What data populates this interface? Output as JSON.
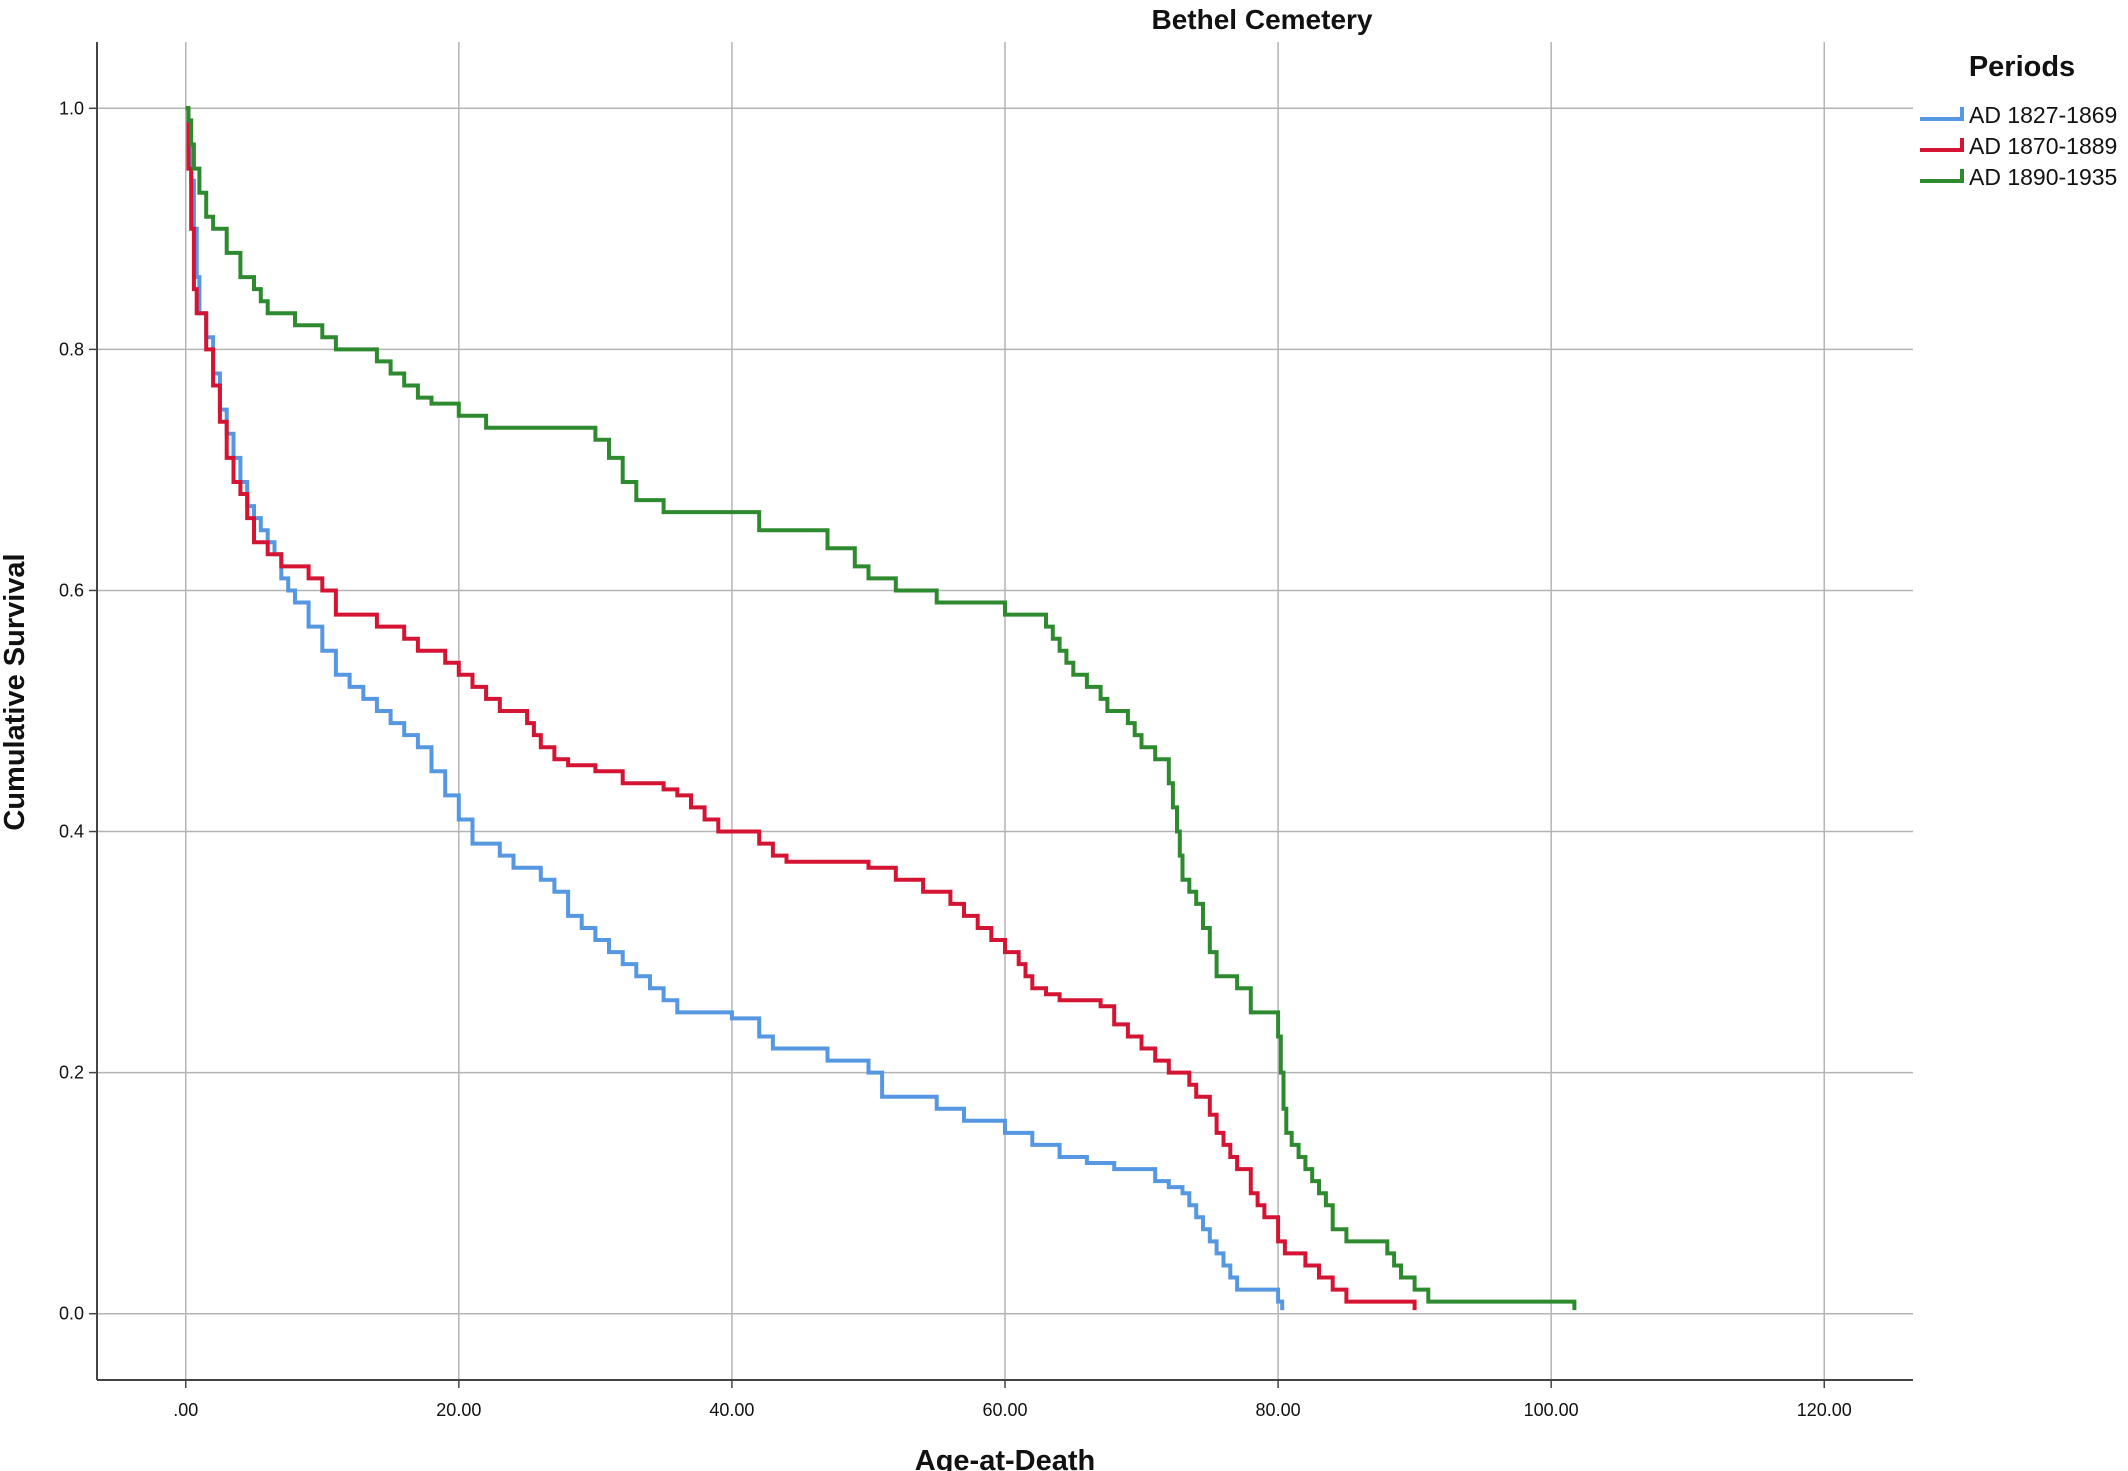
{
  "chart_data": {
    "type": "line",
    "title": "Bethel Cemetery",
    "xlabel": "Age-at-Death",
    "ylabel": "Cumulative Survival",
    "xlim": [
      -6.5,
      126.5
    ],
    "ylim": [
      -0.055,
      1.055
    ],
    "x_ticks": [
      0,
      20,
      40,
      60,
      80,
      100,
      120
    ],
    "x_tick_labels": [
      ".00",
      "20.00",
      "40.00",
      "60.00",
      "80.00",
      "100.00",
      "120.00"
    ],
    "y_ticks": [
      0,
      0.2,
      0.4,
      0.6,
      0.8,
      1.0
    ],
    "y_tick_labels": [
      "0.0",
      "0.2",
      "0.4",
      "0.6",
      "0.8",
      "1.0"
    ],
    "grid": true,
    "legend": {
      "title": "Periods",
      "position": "top-right"
    },
    "series": [
      {
        "name": "AD 1827-1869",
        "color": "#5597e1",
        "points": [
          [
            0,
            1.0
          ],
          [
            0.2,
            0.97
          ],
          [
            0.4,
            0.94
          ],
          [
            0.6,
            0.9
          ],
          [
            0.8,
            0.86
          ],
          [
            1.0,
            0.83
          ],
          [
            1.5,
            0.81
          ],
          [
            2.0,
            0.78
          ],
          [
            2.5,
            0.75
          ],
          [
            3.0,
            0.73
          ],
          [
            3.5,
            0.71
          ],
          [
            4.0,
            0.69
          ],
          [
            4.5,
            0.67
          ],
          [
            5.0,
            0.66
          ],
          [
            5.5,
            0.65
          ],
          [
            6.0,
            0.64
          ],
          [
            6.5,
            0.63
          ],
          [
            7.0,
            0.61
          ],
          [
            7.5,
            0.6
          ],
          [
            8.0,
            0.59
          ],
          [
            9.0,
            0.57
          ],
          [
            10.0,
            0.55
          ],
          [
            11.0,
            0.53
          ],
          [
            12.0,
            0.52
          ],
          [
            13.0,
            0.51
          ],
          [
            14.0,
            0.5
          ],
          [
            15.0,
            0.49
          ],
          [
            16.0,
            0.48
          ],
          [
            17.0,
            0.47
          ],
          [
            18.0,
            0.45
          ],
          [
            19.0,
            0.43
          ],
          [
            20.0,
            0.41
          ],
          [
            21.0,
            0.39
          ],
          [
            23.0,
            0.38
          ],
          [
            24.0,
            0.37
          ],
          [
            26.0,
            0.36
          ],
          [
            27.0,
            0.35
          ],
          [
            28.0,
            0.33
          ],
          [
            29.0,
            0.32
          ],
          [
            30.0,
            0.31
          ],
          [
            31.0,
            0.3
          ],
          [
            32.0,
            0.29
          ],
          [
            33.0,
            0.28
          ],
          [
            34.0,
            0.27
          ],
          [
            35.0,
            0.26
          ],
          [
            36.0,
            0.25
          ],
          [
            40.0,
            0.245
          ],
          [
            42.0,
            0.23
          ],
          [
            43.0,
            0.22
          ],
          [
            47.0,
            0.21
          ],
          [
            50.0,
            0.2
          ],
          [
            51.0,
            0.18
          ],
          [
            55.0,
            0.17
          ],
          [
            57.0,
            0.16
          ],
          [
            60.0,
            0.15
          ],
          [
            62.0,
            0.14
          ],
          [
            64.0,
            0.13
          ],
          [
            66.0,
            0.125
          ],
          [
            68.0,
            0.12
          ],
          [
            71.0,
            0.11
          ],
          [
            72.0,
            0.105
          ],
          [
            73.0,
            0.1
          ],
          [
            73.5,
            0.09
          ],
          [
            74.0,
            0.08
          ],
          [
            74.5,
            0.07
          ],
          [
            75.0,
            0.06
          ],
          [
            75.5,
            0.05
          ],
          [
            76.0,
            0.04
          ],
          [
            76.5,
            0.03
          ],
          [
            77.0,
            0.02
          ],
          [
            80.0,
            0.01
          ],
          [
            80.3,
            0.003
          ]
        ]
      },
      {
        "name": "AD 1870-1889",
        "color": "#d41432",
        "points": [
          [
            0,
            1.0
          ],
          [
            0.2,
            0.95
          ],
          [
            0.4,
            0.9
          ],
          [
            0.6,
            0.85
          ],
          [
            0.8,
            0.83
          ],
          [
            1.5,
            0.8
          ],
          [
            2.0,
            0.77
          ],
          [
            2.5,
            0.74
          ],
          [
            3.0,
            0.71
          ],
          [
            3.5,
            0.69
          ],
          [
            4.0,
            0.68
          ],
          [
            4.5,
            0.66
          ],
          [
            5.0,
            0.64
          ],
          [
            6.0,
            0.63
          ],
          [
            7.0,
            0.62
          ],
          [
            9.0,
            0.61
          ],
          [
            10.0,
            0.6
          ],
          [
            11.0,
            0.58
          ],
          [
            14.0,
            0.57
          ],
          [
            16.0,
            0.56
          ],
          [
            17.0,
            0.55
          ],
          [
            19.0,
            0.54
          ],
          [
            20.0,
            0.53
          ],
          [
            21.0,
            0.52
          ],
          [
            22.0,
            0.51
          ],
          [
            23.0,
            0.5
          ],
          [
            25.0,
            0.49
          ],
          [
            25.5,
            0.48
          ],
          [
            26.0,
            0.47
          ],
          [
            27.0,
            0.46
          ],
          [
            28.0,
            0.455
          ],
          [
            30.0,
            0.45
          ],
          [
            32.0,
            0.44
          ],
          [
            35.0,
            0.435
          ],
          [
            36.0,
            0.43
          ],
          [
            37.0,
            0.42
          ],
          [
            38.0,
            0.41
          ],
          [
            39.0,
            0.4
          ],
          [
            42.0,
            0.39
          ],
          [
            43.0,
            0.38
          ],
          [
            44.0,
            0.375
          ],
          [
            50.0,
            0.37
          ],
          [
            52.0,
            0.36
          ],
          [
            54.0,
            0.35
          ],
          [
            56.0,
            0.34
          ],
          [
            57.0,
            0.33
          ],
          [
            58.0,
            0.32
          ],
          [
            59.0,
            0.31
          ],
          [
            60.0,
            0.3
          ],
          [
            61.0,
            0.29
          ],
          [
            61.5,
            0.28
          ],
          [
            62.0,
            0.27
          ],
          [
            63.0,
            0.265
          ],
          [
            64.0,
            0.26
          ],
          [
            67.0,
            0.255
          ],
          [
            68.0,
            0.24
          ],
          [
            69.0,
            0.23
          ],
          [
            70.0,
            0.22
          ],
          [
            71.0,
            0.21
          ],
          [
            72.0,
            0.2
          ],
          [
            73.5,
            0.19
          ],
          [
            74.0,
            0.18
          ],
          [
            75.0,
            0.165
          ],
          [
            75.5,
            0.15
          ],
          [
            76.0,
            0.14
          ],
          [
            76.5,
            0.13
          ],
          [
            77.0,
            0.12
          ],
          [
            78.0,
            0.1
          ],
          [
            78.5,
            0.09
          ],
          [
            79.0,
            0.08
          ],
          [
            80.0,
            0.06
          ],
          [
            80.5,
            0.05
          ],
          [
            82.0,
            0.04
          ],
          [
            83.0,
            0.03
          ],
          [
            84.0,
            0.02
          ],
          [
            85.0,
            0.01
          ],
          [
            90.0,
            0.003
          ]
        ]
      },
      {
        "name": "AD 1890-1935",
        "color": "#2e8a2e",
        "points": [
          [
            0,
            1.0
          ],
          [
            0.2,
            0.99
          ],
          [
            0.4,
            0.97
          ],
          [
            0.6,
            0.95
          ],
          [
            1.0,
            0.93
          ],
          [
            1.5,
            0.91
          ],
          [
            2.0,
            0.9
          ],
          [
            3.0,
            0.88
          ],
          [
            4.0,
            0.86
          ],
          [
            5.0,
            0.85
          ],
          [
            5.5,
            0.84
          ],
          [
            6.0,
            0.83
          ],
          [
            8.0,
            0.82
          ],
          [
            10.0,
            0.81
          ],
          [
            11.0,
            0.8
          ],
          [
            14.0,
            0.79
          ],
          [
            15.0,
            0.78
          ],
          [
            16.0,
            0.77
          ],
          [
            17.0,
            0.76
          ],
          [
            18.0,
            0.755
          ],
          [
            20.0,
            0.745
          ],
          [
            22.0,
            0.735
          ],
          [
            30.0,
            0.725
          ],
          [
            31.0,
            0.71
          ],
          [
            32.0,
            0.69
          ],
          [
            33.0,
            0.675
          ],
          [
            35.0,
            0.665
          ],
          [
            42.0,
            0.65
          ],
          [
            47.0,
            0.635
          ],
          [
            49.0,
            0.62
          ],
          [
            50.0,
            0.61
          ],
          [
            52.0,
            0.6
          ],
          [
            55.0,
            0.59
          ],
          [
            60.0,
            0.58
          ],
          [
            63.0,
            0.57
          ],
          [
            63.5,
            0.56
          ],
          [
            64.0,
            0.55
          ],
          [
            64.5,
            0.54
          ],
          [
            65.0,
            0.53
          ],
          [
            66.0,
            0.52
          ],
          [
            67.0,
            0.51
          ],
          [
            67.5,
            0.5
          ],
          [
            69.0,
            0.49
          ],
          [
            69.5,
            0.48
          ],
          [
            70.0,
            0.47
          ],
          [
            71.0,
            0.46
          ],
          [
            72.0,
            0.44
          ],
          [
            72.3,
            0.42
          ],
          [
            72.6,
            0.4
          ],
          [
            72.8,
            0.38
          ],
          [
            73.0,
            0.36
          ],
          [
            73.5,
            0.35
          ],
          [
            74.0,
            0.34
          ],
          [
            74.5,
            0.32
          ],
          [
            75.0,
            0.3
          ],
          [
            75.5,
            0.28
          ],
          [
            77.0,
            0.27
          ],
          [
            78.0,
            0.25
          ],
          [
            80.0,
            0.23
          ],
          [
            80.2,
            0.2
          ],
          [
            80.4,
            0.17
          ],
          [
            80.6,
            0.15
          ],
          [
            81.0,
            0.14
          ],
          [
            81.5,
            0.13
          ],
          [
            82.0,
            0.12
          ],
          [
            82.5,
            0.11
          ],
          [
            83.0,
            0.1
          ],
          [
            83.5,
            0.09
          ],
          [
            84.0,
            0.07
          ],
          [
            85.0,
            0.06
          ],
          [
            88.0,
            0.05
          ],
          [
            88.5,
            0.04
          ],
          [
            89.0,
            0.03
          ],
          [
            90.0,
            0.02
          ],
          [
            91.0,
            0.01
          ],
          [
            101.7,
            0.003
          ]
        ]
      }
    ]
  }
}
